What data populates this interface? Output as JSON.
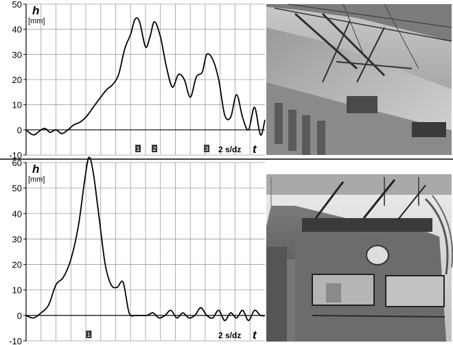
{
  "chart_data": [
    {
      "type": "line",
      "ylabel": "h",
      "yunit": "[mm]",
      "xlabel": "t",
      "scale_label": "2 s/dz",
      "ylim": [
        -10,
        50
      ],
      "yticks": [
        "50",
        "40",
        "30",
        "20",
        "10",
        "0",
        "-10"
      ],
      "markers": [
        {
          "label": "1",
          "x": 7.5
        },
        {
          "label": "2",
          "x": 8.6
        },
        {
          "label": "3",
          "x": 12.1
        }
      ],
      "x": [
        0,
        0.5,
        1.0,
        1.3,
        1.6,
        2.0,
        2.4,
        2.8,
        3.2,
        3.6,
        4.0,
        4.5,
        5.0,
        5.4,
        5.8,
        6.2,
        6.6,
        7.0,
        7.3,
        7.6,
        8.0,
        8.3,
        8.6,
        9.0,
        9.4,
        9.8,
        10.2,
        10.6,
        11.0,
        11.4,
        11.8,
        12.1,
        12.5,
        12.9,
        13.3,
        13.7,
        14.1,
        14.5,
        14.9,
        15.3,
        15.7,
        16.0
      ],
      "series": [
        {
          "values": [
            0,
            -2,
            0,
            0.5,
            -1,
            0,
            -1.5,
            0,
            2,
            3,
            5,
            9,
            13,
            16,
            18,
            22,
            32,
            38,
            44,
            43,
            33,
            37,
            43,
            37,
            25,
            17,
            22,
            20,
            13,
            21,
            23,
            30,
            28,
            20,
            6,
            5,
            14,
            5,
            0,
            9,
            -2,
            4
          ]
        }
      ]
    },
    {
      "type": "line",
      "ylabel": "h",
      "yunit": "[mm]",
      "xlabel": "t",
      "scale_label": "2 s/dz",
      "ylim": [
        -10,
        60
      ],
      "yticks": [
        "60",
        "50",
        "40",
        "30",
        "20",
        "10",
        "0",
        "-10"
      ],
      "markers": [
        {
          "label": "1",
          "x": 4.2
        }
      ],
      "x": [
        0,
        0.5,
        1.0,
        1.5,
        2.0,
        2.5,
        3.0,
        3.5,
        3.9,
        4.2,
        4.5,
        4.9,
        5.3,
        5.7,
        6.1,
        6.5,
        6.9,
        7.3,
        7.7,
        8.1,
        8.5,
        8.9,
        9.3,
        9.7,
        10.1,
        10.5,
        10.9,
        11.3,
        11.7,
        12.1,
        12.5,
        12.9,
        13.3,
        13.7,
        14.1,
        14.5,
        14.9,
        15.3,
        15.7,
        16.0
      ],
      "series": [
        {
          "values": [
            0,
            -1,
            1,
            4,
            12,
            15,
            22,
            35,
            52,
            62,
            56,
            38,
            20,
            12,
            11,
            13,
            1,
            0,
            0,
            0,
            1,
            -1,
            0,
            2,
            -1,
            1,
            -1,
            0,
            3,
            0,
            -1,
            2,
            -2,
            1,
            -1,
            2,
            -2,
            2,
            0,
            0
          ]
        }
      ]
    }
  ],
  "photos": [
    {
      "name": "train-roof-photo"
    },
    {
      "name": "locomotive-front-photo"
    }
  ]
}
